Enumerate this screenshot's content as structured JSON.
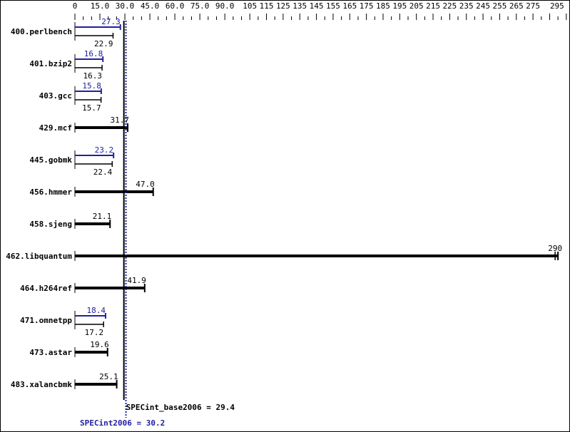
{
  "chart_data": {
    "type": "bar",
    "orientation": "horizontal",
    "xlim": [
      0,
      295
    ],
    "x_ticks": [
      "0",
      "15.0",
      "30.0",
      "45.0",
      "60.0",
      "75.0",
      "90.0",
      "105",
      "115",
      "125",
      "135",
      "145",
      "155",
      "165",
      "175",
      "185",
      "195",
      "205",
      "215",
      "225",
      "235",
      "245",
      "255",
      "265",
      "275",
      "295"
    ],
    "categories": [
      "400.perlbench",
      "401.bzip2",
      "403.gcc",
      "429.mcf",
      "445.gobmk",
      "456.hmmer",
      "458.sjeng",
      "462.libquantum",
      "464.h264ref",
      "471.omnetpp",
      "473.astar",
      "483.xalancbmk"
    ],
    "series": [
      {
        "name": "SPECint2006",
        "color": "#2020a0",
        "values": [
          27.3,
          16.8,
          15.8,
          null,
          23.2,
          null,
          null,
          null,
          null,
          18.4,
          null,
          null
        ]
      },
      {
        "name": "SPECint_base2006",
        "color": "#000000",
        "values": [
          22.9,
          16.3,
          15.7,
          31.7,
          22.4,
          47.0,
          21.1,
          290,
          41.9,
          17.2,
          19.6,
          25.1
        ]
      }
    ],
    "value_labels_base": [
      "22.9",
      "16.3",
      "15.7",
      "31.7",
      "22.4",
      "47.0",
      "21.1",
      "290",
      "41.9",
      "17.2",
      "19.6",
      "25.1"
    ],
    "value_labels_peak": [
      "27.3",
      "16.8",
      "15.8",
      "",
      "23.2",
      "",
      "",
      "",
      "",
      "18.4",
      "",
      ""
    ],
    "reference_lines": [
      {
        "label": "SPECint_base2006 = 29.4",
        "value": 29.4,
        "color": "#000000",
        "style": "solid"
      },
      {
        "label": "SPECint2006 = 30.2",
        "value": 30.2,
        "color": "#2020a0",
        "style": "dotted"
      }
    ]
  }
}
